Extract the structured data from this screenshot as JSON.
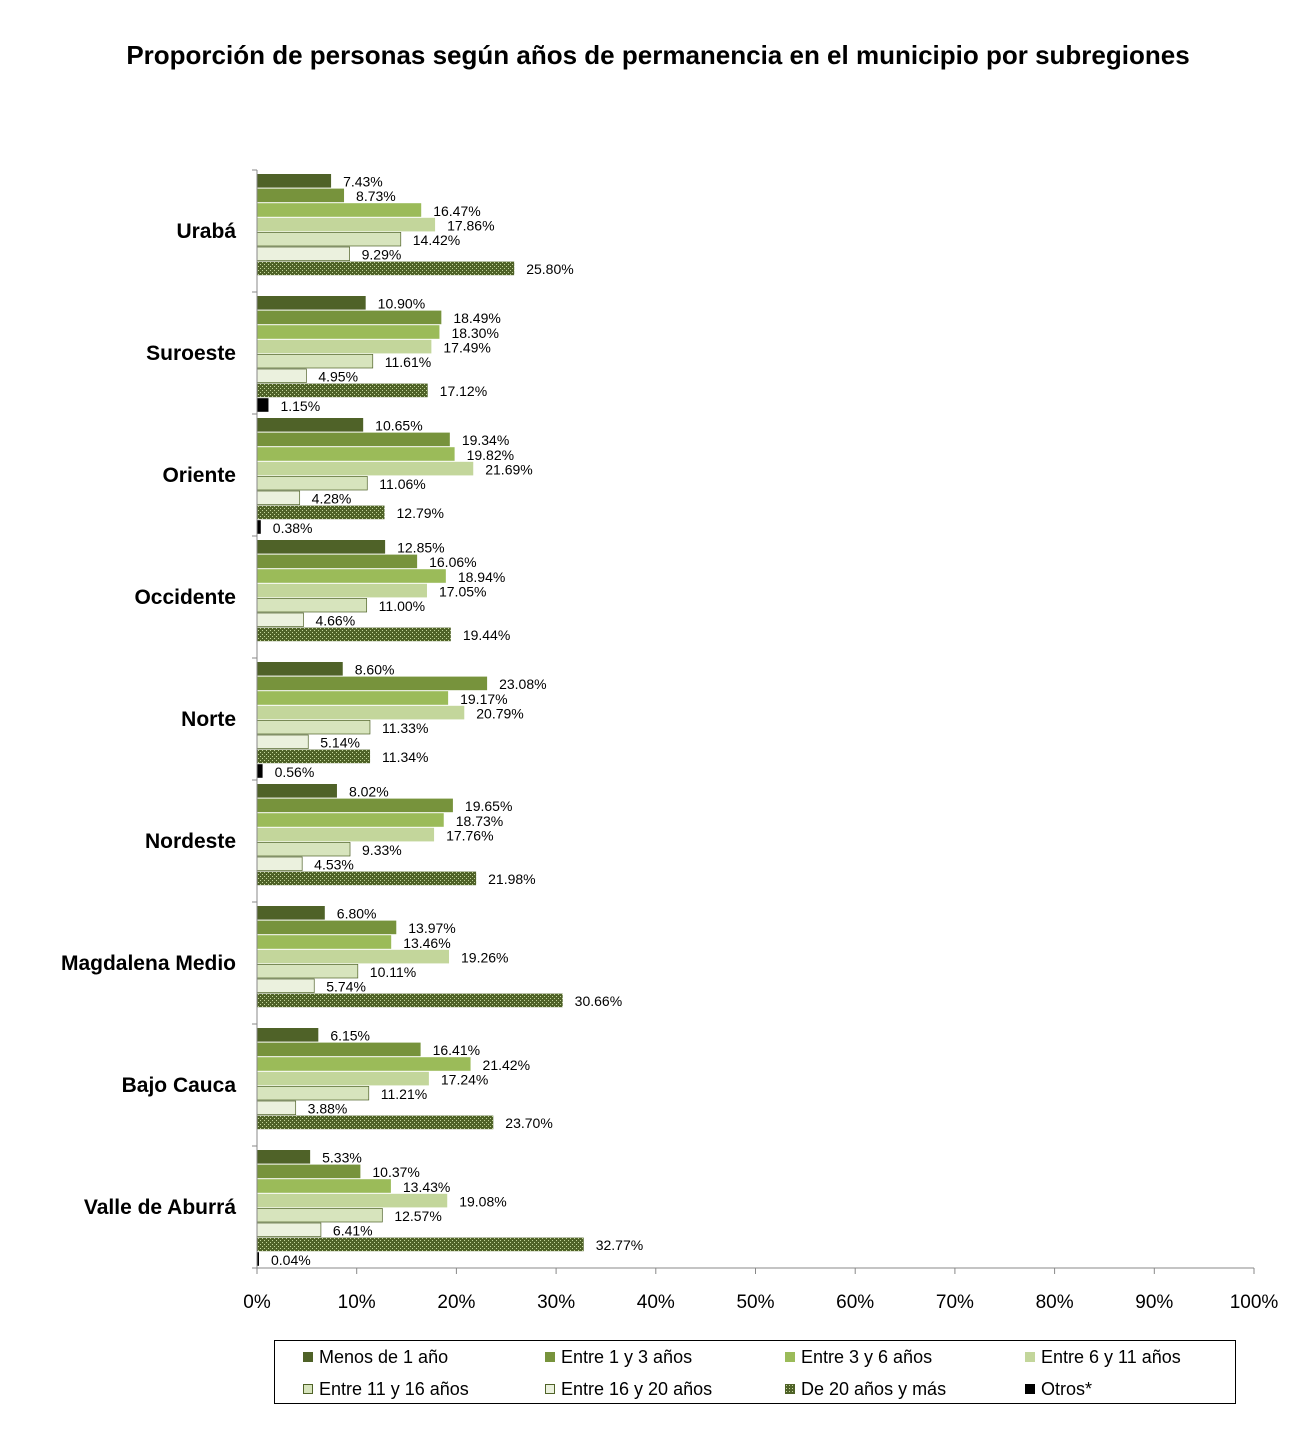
{
  "chart_data": {
    "type": "bar",
    "orientation": "horizontal",
    "title": "Proporción de personas según años de permanencia en el municipio   por subregiones",
    "xlim": [
      0,
      100
    ],
    "x_ticks": [
      "0%",
      "10%",
      "20%",
      "30%",
      "40%",
      "50%",
      "60%",
      "70%",
      "80%",
      "90%",
      "100%"
    ],
    "legend_position": "bottom",
    "grid": false,
    "categories": [
      "Urabá",
      "Suroeste",
      "Oriente",
      "Occidente",
      "Norte",
      "Nordeste",
      "Magdalena Medio",
      "Bajo Cauca",
      "Valle de Aburrá"
    ],
    "series": [
      {
        "name": "Menos de 1 año",
        "color": "#4f6228",
        "pattern": "solid",
        "values": [
          7.43,
          10.9,
          10.65,
          12.85,
          8.6,
          8.02,
          6.8,
          6.15,
          5.33
        ],
        "labels": [
          "7.43%",
          "10.90%",
          "10.65%",
          "12.85%",
          "8.60%",
          "8.02%",
          "6.80%",
          "6.15%",
          "5.33%"
        ]
      },
      {
        "name": "Entre 1 y 3 años",
        "color": "#77933c",
        "pattern": "solid",
        "values": [
          8.73,
          18.49,
          19.34,
          16.06,
          23.08,
          19.65,
          13.97,
          16.41,
          10.37
        ],
        "labels": [
          "8.73%",
          "18.49%",
          "19.34%",
          "16.06%",
          "23.08%",
          "19.65%",
          "13.97%",
          "16.41%",
          "10.37%"
        ]
      },
      {
        "name": "Entre 3 y 6 años",
        "color": "#9bbb59",
        "pattern": "solid",
        "values": [
          16.47,
          18.3,
          19.82,
          18.94,
          19.17,
          18.73,
          13.46,
          21.42,
          13.43
        ],
        "labels": [
          "16.47%",
          "18.30%",
          "19.82%",
          "18.94%",
          "19.17%",
          "18.73%",
          "13.46%",
          "21.42%",
          "13.43%"
        ]
      },
      {
        "name": "Entre 6 y 11 años",
        "color": "#c3d69b",
        "pattern": "solid",
        "values": [
          17.86,
          17.49,
          21.69,
          17.05,
          20.79,
          17.76,
          19.26,
          17.24,
          19.08
        ],
        "labels": [
          "17.86%",
          "17.49%",
          "21.69%",
          "17.05%",
          "20.79%",
          "17.76%",
          "19.26%",
          "17.24%",
          "19.08%"
        ]
      },
      {
        "name": "Entre 11 y 16 años",
        "color": "#d7e4bd",
        "pattern": "solid",
        "values": [
          14.42,
          11.61,
          11.06,
          11.0,
          11.33,
          9.33,
          10.11,
          11.21,
          12.57
        ],
        "labels": [
          "14.42%",
          "11.61%",
          "11.06%",
          "11.00%",
          "11.33%",
          "9.33%",
          "10.11%",
          "11.21%",
          "12.57%"
        ]
      },
      {
        "name": "Entre 16 y 20 años",
        "color": "#ebf1de",
        "pattern": "solid",
        "values": [
          9.29,
          4.95,
          4.28,
          4.66,
          5.14,
          4.53,
          5.74,
          3.88,
          6.41
        ],
        "labels": [
          "9.29%",
          "4.95%",
          "4.28%",
          "4.66%",
          "5.14%",
          "4.53%",
          "5.74%",
          "3.88%",
          "6.41%"
        ]
      },
      {
        "name": "De 20 años y más",
        "color": "#4f6228",
        "pattern": "dotted",
        "values": [
          25.8,
          17.12,
          12.79,
          19.44,
          11.34,
          21.98,
          30.66,
          23.7,
          32.77
        ],
        "labels": [
          "25.80%",
          "17.12%",
          "12.79%",
          "19.44%",
          "11.34%",
          "21.98%",
          "30.66%",
          "23.70%",
          "32.77%"
        ]
      },
      {
        "name": "Otros*",
        "color": "#000000",
        "pattern": "solid",
        "values": [
          null,
          1.15,
          0.38,
          null,
          0.56,
          null,
          null,
          null,
          0.04
        ],
        "labels": [
          null,
          "1.15%",
          "0.38%",
          null,
          "0.56%",
          null,
          null,
          null,
          "0.04%"
        ]
      }
    ]
  }
}
